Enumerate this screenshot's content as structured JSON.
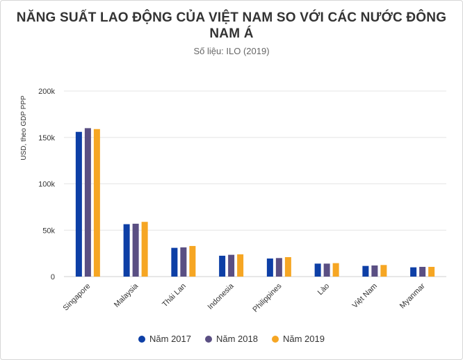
{
  "chart_data": {
    "type": "bar",
    "title": "NĂNG SUẤT LAO ĐỘNG CỦA VIỆT NAM SO VỚI CÁC NƯỚC ĐÔNG NAM Á",
    "subtitle": "Số liệu: ILO (2019)",
    "ylabel": "USD, theo GDP PPP",
    "xlabel": "",
    "ylim": [
      0,
      200000
    ],
    "yticks": [
      {
        "value": 0,
        "label": "0"
      },
      {
        "value": 50000,
        "label": "50k"
      },
      {
        "value": 100000,
        "label": "100k"
      },
      {
        "value": 150000,
        "label": "150k"
      },
      {
        "value": 200000,
        "label": "200k"
      }
    ],
    "categories": [
      "Singapore",
      "Malaysia",
      "Thái Lan",
      "Indonesia",
      "Philippines",
      "Lào",
      "Việt Nam",
      "Myanmar"
    ],
    "series": [
      {
        "name": "Năm 2017",
        "color": "#0d3fa6",
        "values": [
          156000,
          56500,
          31000,
          22500,
          19500,
          14000,
          11500,
          10000
        ]
      },
      {
        "name": "Năm 2018",
        "color": "#5a4f83",
        "values": [
          160000,
          57000,
          31500,
          23500,
          20000,
          14000,
          12000,
          10500
        ]
      },
      {
        "name": "Năm 2019",
        "color": "#f6a623",
        "values": [
          159000,
          59000,
          33000,
          24000,
          21000,
          14500,
          12500,
          10500
        ]
      }
    ],
    "grid": true,
    "legend": "bottom-center"
  }
}
